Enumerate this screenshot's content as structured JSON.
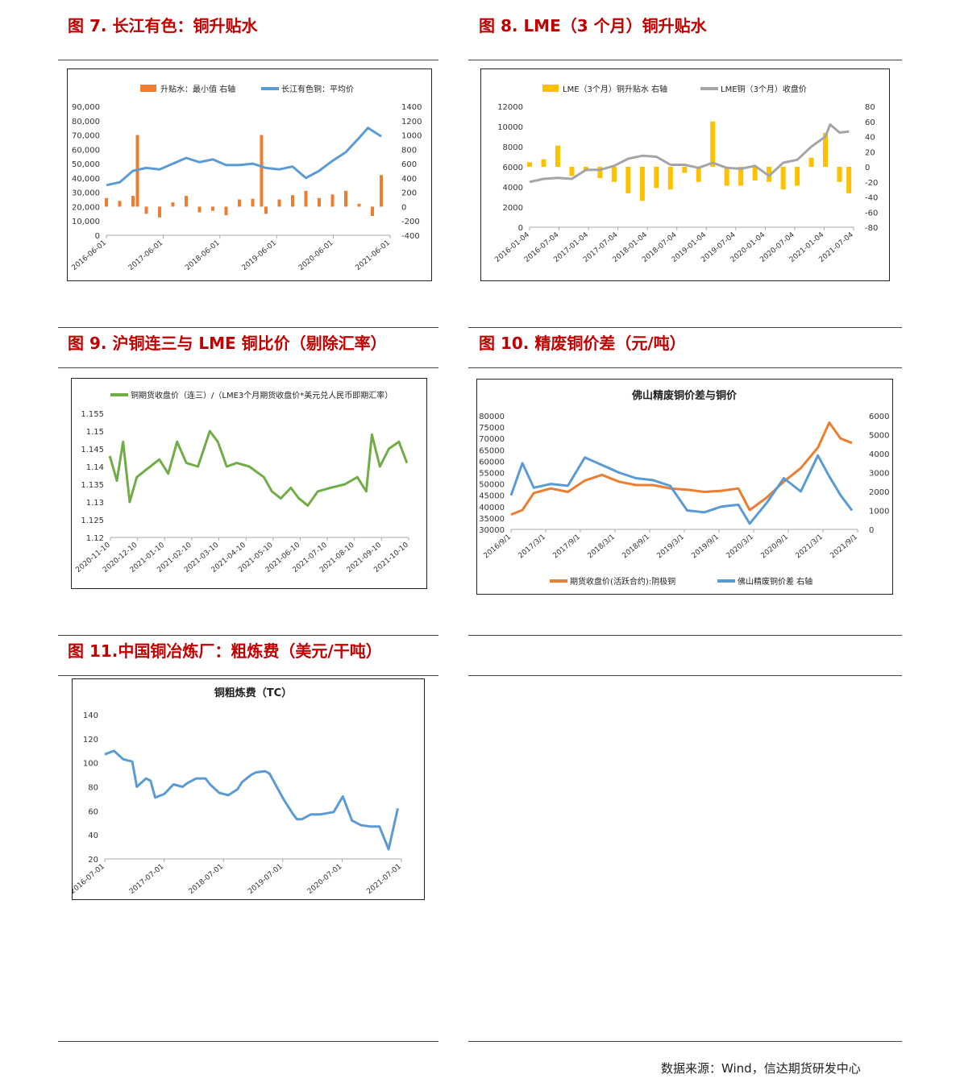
{
  "figures": [
    {
      "title": "图 7. 长江有色：铜升贴水"
    },
    {
      "title": "图 8. LME（3 个月）铜升贴水"
    },
    {
      "title": "图 9. 沪铜连三与 LME 铜比价（剔除汇率）"
    },
    {
      "title": "图 10. 精废铜价差（元/吨）"
    },
    {
      "title": "图 11.中国铜冶炼厂：粗炼费（美元/干吨）"
    }
  ],
  "footer": {
    "source": "数据来源：Wind，信达期货研发中心"
  },
  "colors": {
    "title_red": "#c00000",
    "orange": "#ed7d31",
    "blue": "#5b9bd5",
    "gold": "#ffc000",
    "gray": "#a5a5a5",
    "green": "#70ad47"
  },
  "chart_data": [
    {
      "type": "bar",
      "title": "",
      "legend": [
        "升贴水：最小值 右轴",
        "长江有色铜：平均价"
      ],
      "legend_position": "top",
      "ylim": [
        0,
        90000
      ],
      "yticks": [
        "90,000",
        "80,000",
        "70,000",
        "60,000",
        "50,000",
        "40,000",
        "30,000",
        "20,000",
        "10,000",
        "0"
      ],
      "y2lim": [
        -400,
        1400
      ],
      "y2ticks": [
        "1400",
        "1200",
        "1000",
        "800",
        "600",
        "400",
        "200",
        "0",
        "-200",
        "-400"
      ],
      "xticks": [
        "2016-06-01",
        "2017-06-01",
        "2018-06-01",
        "2019-06-01",
        "2020-06-01",
        "2021-06-01"
      ],
      "series": [
        {
          "name": "升贴水：最小值 右轴",
          "axis": "right",
          "kind": "bar",
          "x": [
            "2016-06",
            "2016-09",
            "2016-12",
            "2017-01",
            "2017-03",
            "2017-06",
            "2017-09",
            "2017-12",
            "2018-03",
            "2018-06",
            "2018-09",
            "2018-12",
            "2019-03",
            "2019-05",
            "2019-06",
            "2019-09",
            "2019-12",
            "2020-03",
            "2020-06",
            "2020-09",
            "2020-12",
            "2021-03",
            "2021-06",
            "2021-08"
          ],
          "values": [
            120,
            80,
            150,
            1000,
            -100,
            -150,
            60,
            150,
            -80,
            -60,
            -120,
            100,
            110,
            1000,
            -100,
            100,
            160,
            220,
            120,
            170,
            220,
            40,
            -130,
            440
          ]
        },
        {
          "name": "长江有色铜：平均价",
          "axis": "left",
          "kind": "line",
          "x": [
            "2016-06",
            "2016-09",
            "2016-12",
            "2017-03",
            "2017-06",
            "2017-09",
            "2017-12",
            "2018-03",
            "2018-06",
            "2018-09",
            "2018-12",
            "2019-03",
            "2019-06",
            "2019-09",
            "2019-12",
            "2020-03",
            "2020-06",
            "2020-09",
            "2020-12",
            "2021-03",
            "2021-05",
            "2021-08"
          ],
          "values": [
            35000,
            37000,
            45000,
            47000,
            46000,
            50000,
            54000,
            51000,
            53000,
            49000,
            49000,
            50000,
            47000,
            46000,
            48000,
            40000,
            45000,
            52000,
            58000,
            68000,
            75000,
            69000
          ]
        }
      ]
    },
    {
      "type": "bar",
      "title": "",
      "legend": [
        "LME（3个月）铜升贴水 右轴",
        "LME铜（3个月）收盘价"
      ],
      "legend_position": "top",
      "ylim": [
        0,
        12000
      ],
      "yticks": [
        "12000",
        "10000",
        "8000",
        "6000",
        "4000",
        "2000",
        "0"
      ],
      "y2lim": [
        -80,
        80
      ],
      "y2ticks": [
        "80",
        "60",
        "40",
        "20",
        "0",
        "-20",
        "-40",
        "-60",
        "-80"
      ],
      "xticks": [
        "2016-01-04",
        "2016-07-04",
        "2017-01-04",
        "2017-07-04",
        "2018-01-04",
        "2018-07-04",
        "2019-01-04",
        "2019-07-04",
        "2020-01-04",
        "2020-07-04",
        "2021-01-04",
        "2021-07-04"
      ],
      "series": [
        {
          "name": "LME（3个月）铜升贴水 右轴",
          "axis": "right",
          "kind": "bar",
          "x": [
            "2016-01",
            "2016-04",
            "2016-07",
            "2016-10",
            "2017-01",
            "2017-04",
            "2017-07",
            "2017-10",
            "2018-01",
            "2018-04",
            "2018-07",
            "2018-10",
            "2019-01",
            "2019-04",
            "2019-07",
            "2019-10",
            "2020-01",
            "2020-04",
            "2020-07",
            "2020-10",
            "2021-01",
            "2021-04",
            "2021-07",
            "2021-09"
          ],
          "values": [
            6,
            10,
            28,
            -12,
            -6,
            -15,
            -20,
            -35,
            -45,
            -28,
            -30,
            -8,
            -20,
            60,
            -25,
            -25,
            -18,
            -20,
            -30,
            -25,
            12,
            45,
            -20,
            -35
          ]
        },
        {
          "name": "LME铜（3个月）收盘价",
          "axis": "left",
          "kind": "line",
          "x": [
            "2016-01",
            "2016-04",
            "2016-07",
            "2016-10",
            "2017-01",
            "2017-04",
            "2017-07",
            "2017-10",
            "2018-01",
            "2018-04",
            "2018-07",
            "2018-10",
            "2019-01",
            "2019-04",
            "2019-07",
            "2019-10",
            "2020-01",
            "2020-04",
            "2020-07",
            "2020-10",
            "2021-01",
            "2021-04",
            "2021-05",
            "2021-07",
            "2021-09"
          ],
          "values": [
            4500,
            4800,
            4900,
            4800,
            5700,
            5700,
            6100,
            6800,
            7100,
            7000,
            6200,
            6200,
            5900,
            6400,
            5900,
            5800,
            6100,
            5100,
            6400,
            6700,
            8000,
            9000,
            10200,
            9400,
            9500
          ]
        }
      ]
    },
    {
      "type": "line",
      "title": "",
      "legend": [
        "铜期货收盘价（连三）/（LME3个月期货收盘价*美元兑人民币即期汇率）"
      ],
      "legend_position": "top",
      "ylim": [
        1.12,
        1.155
      ],
      "yticks": [
        "1.155",
        "1.15",
        "1.145",
        "1.14",
        "1.135",
        "1.13",
        "1.125",
        "1.12"
      ],
      "xticks": [
        "2020-11-10",
        "2020-12-10",
        "2021-01-10",
        "2021-02-10",
        "2021-03-10",
        "2021-04-10",
        "2021-05-10",
        "2021-06-10",
        "2021-07-10",
        "2021-08-10",
        "2021-09-10",
        "2021-10-10"
      ],
      "series": [
        {
          "name": "铜期货收盘价（连三）/（LME3个月期货收盘价*美元兑人民币即期汇率）",
          "x": [
            "2020-11-10",
            "2020-11-18",
            "2020-11-25",
            "2020-12-02",
            "2020-12-10",
            "2020-12-20",
            "2021-01-05",
            "2021-01-15",
            "2021-01-25",
            "2021-02-05",
            "2021-02-18",
            "2021-03-01",
            "2021-03-10",
            "2021-03-20",
            "2021-04-01",
            "2021-04-15",
            "2021-05-01",
            "2021-05-10",
            "2021-05-20",
            "2021-06-01",
            "2021-06-10",
            "2021-06-20",
            "2021-07-01",
            "2021-07-15",
            "2021-08-01",
            "2021-08-15",
            "2021-08-25",
            "2021-09-01",
            "2021-09-10",
            "2021-09-20",
            "2021-10-01",
            "2021-10-10"
          ],
          "values": [
            1.143,
            1.136,
            1.147,
            1.13,
            1.137,
            1.139,
            1.142,
            1.138,
            1.147,
            1.141,
            1.14,
            1.15,
            1.147,
            1.14,
            1.141,
            1.14,
            1.137,
            1.133,
            1.131,
            1.134,
            1.131,
            1.129,
            1.133,
            1.134,
            1.135,
            1.137,
            1.133,
            1.149,
            1.14,
            1.145,
            1.147,
            1.141
          ]
        }
      ]
    },
    {
      "type": "line",
      "title": "佛山精废铜价差与铜价",
      "legend": [
        "期货收盘价(活跃合约):阴极铜",
        "佛山精废铜价差 右轴"
      ],
      "legend_position": "bottom",
      "ylim": [
        30000,
        80000
      ],
      "yticks": [
        "80000",
        "75000",
        "70000",
        "65000",
        "60000",
        "55000",
        "50000",
        "45000",
        "40000",
        "35000",
        "30000"
      ],
      "y2lim": [
        0,
        6000
      ],
      "y2ticks": [
        "6000",
        "5000",
        "4000",
        "3000",
        "2000",
        "1000",
        "0"
      ],
      "xticks": [
        "2016/9/1",
        "2017/3/1",
        "2017/9/1",
        "2018/3/1",
        "2018/9/1",
        "2019/3/1",
        "2019/9/1",
        "2020/3/1",
        "2020/9/1",
        "2021/3/1",
        "2021/9/1"
      ],
      "series": [
        {
          "name": "期货收盘价(活跃合约):阴极铜",
          "axis": "left",
          "x": [
            "2016-09",
            "2016-11",
            "2017-01",
            "2017-04",
            "2017-07",
            "2017-10",
            "2018-01",
            "2018-04",
            "2018-07",
            "2018-10",
            "2019-01",
            "2019-04",
            "2019-07",
            "2019-10",
            "2020-01",
            "2020-03",
            "2020-06",
            "2020-09",
            "2020-12",
            "2021-03",
            "2021-05",
            "2021-07",
            "2021-09"
          ],
          "values": [
            36500,
            38500,
            46000,
            48000,
            46500,
            51500,
            54000,
            51000,
            49500,
            49500,
            48000,
            47500,
            46500,
            47000,
            48000,
            38500,
            44000,
            51000,
            57000,
            66000,
            77000,
            70000,
            68000
          ]
        },
        {
          "name": "佛山精废铜价差 右轴",
          "axis": "right",
          "x": [
            "2016-09",
            "2016-11",
            "2017-01",
            "2017-04",
            "2017-07",
            "2017-10",
            "2018-01",
            "2018-04",
            "2018-07",
            "2018-10",
            "2019-01",
            "2019-04",
            "2019-07",
            "2019-10",
            "2020-01",
            "2020-03",
            "2020-06",
            "2020-09",
            "2020-12",
            "2021-03",
            "2021-05",
            "2021-07",
            "2021-09"
          ],
          "values": [
            1800,
            3500,
            2200,
            2400,
            2300,
            3800,
            3400,
            3000,
            2700,
            2600,
            2300,
            1000,
            900,
            1200,
            1300,
            300,
            1400,
            2700,
            2000,
            3900,
            2800,
            1800,
            1000
          ]
        }
      ]
    },
    {
      "type": "line",
      "title": "铜粗炼费（TC）",
      "legend": [],
      "ylim": [
        20,
        140
      ],
      "yticks": [
        "140",
        "120",
        "100",
        "80",
        "60",
        "40",
        "20"
      ],
      "xticks": [
        "2016-07-01",
        "2017-07-01",
        "2018-07-01",
        "2019-07-01",
        "2020-07-01",
        "2021-07-01"
      ],
      "series": [
        {
          "name": "铜粗炼费（TC）",
          "x": [
            "2016-07",
            "2016-09",
            "2016-11",
            "2017-01",
            "2017-02",
            "2017-04",
            "2017-05",
            "2017-06",
            "2017-08",
            "2017-10",
            "2017-12",
            "2018-01",
            "2018-03",
            "2018-05",
            "2018-06",
            "2018-08",
            "2018-10",
            "2018-12",
            "2019-01",
            "2019-03",
            "2019-04",
            "2019-06",
            "2019-07",
            "2019-09",
            "2019-10",
            "2019-12",
            "2020-01",
            "2020-02",
            "2020-04",
            "2020-06",
            "2020-09",
            "2020-11",
            "2021-01",
            "2021-03",
            "2021-05",
            "2021-07",
            "2021-09",
            "2021-11"
          ],
          "values": [
            107,
            110,
            103,
            101,
            80,
            87,
            85,
            71,
            74,
            82,
            80,
            83,
            87,
            87,
            82,
            75,
            73,
            78,
            84,
            90,
            92,
            93,
            91,
            77,
            70,
            58,
            53,
            53,
            57,
            57,
            59,
            72,
            52,
            48,
            47,
            47,
            28,
            62
          ]
        }
      ]
    }
  ]
}
